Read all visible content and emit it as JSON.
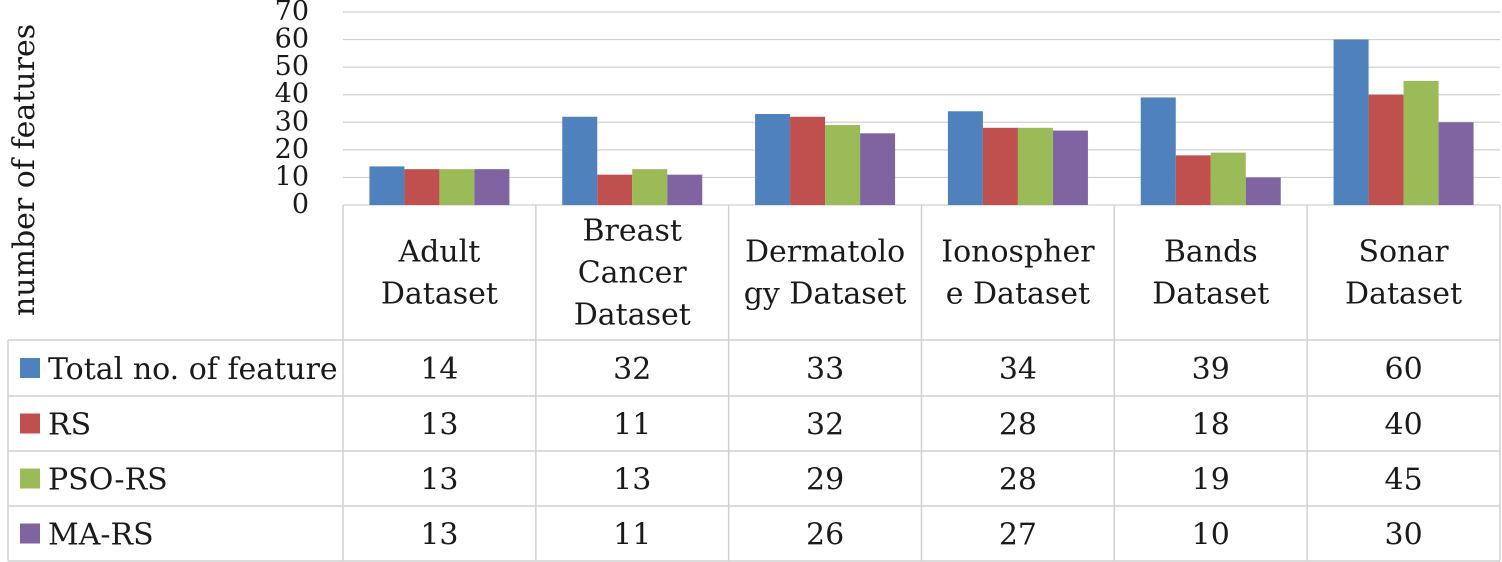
{
  "chart_data": {
    "type": "bar",
    "ylabel": "number of features",
    "ylim": [
      0,
      70
    ],
    "yticks": [
      0,
      10,
      20,
      30,
      40,
      50,
      60,
      70
    ],
    "grid": true,
    "legend": "data-table",
    "categories": [
      [
        "Adult",
        "Dataset"
      ],
      [
        "Breast",
        "Cancer",
        "Dataset"
      ],
      [
        "Dermatolo",
        "gy Dataset"
      ],
      [
        "Ionospher",
        "e Dataset"
      ],
      [
        "Bands",
        "Dataset"
      ],
      [
        "Sonar",
        "Dataset"
      ]
    ],
    "series": [
      {
        "name": "Total no. of feature",
        "color": "#4f81bd",
        "values": [
          14,
          32,
          33,
          34,
          39,
          60
        ]
      },
      {
        "name": "RS",
        "color": "#c0504d",
        "values": [
          13,
          11,
          32,
          28,
          18,
          40
        ]
      },
      {
        "name": "PSO-RS",
        "color": "#9bbb59",
        "values": [
          13,
          13,
          29,
          28,
          19,
          45
        ]
      },
      {
        "name": "MA-RS",
        "color": "#8064a2",
        "values": [
          13,
          11,
          26,
          27,
          10,
          30
        ]
      }
    ]
  }
}
